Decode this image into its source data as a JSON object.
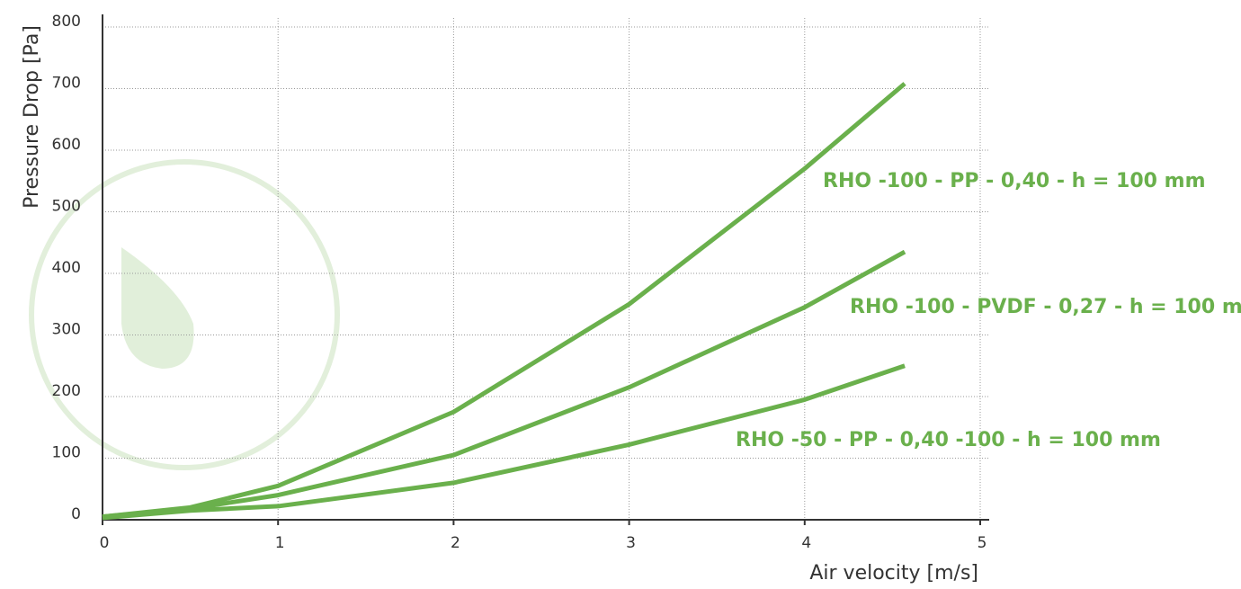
{
  "chart_data": {
    "type": "line",
    "y_label": "Pressure Drop [Pa]",
    "x_label": "Air velocity [m/s]",
    "x": [
      0,
      0.5,
      1,
      2,
      3,
      4,
      4.57
    ],
    "series": [
      {
        "name": "RHO -100 - PP - 0,40 - h = 100 mm",
        "color": "#6ab04c",
        "values": [
          5,
          20,
          55,
          175,
          350,
          570,
          708
        ]
      },
      {
        "name": "RHO -100 - PVDF - 0,27 - h = 100 mm",
        "color": "#6ab04c",
        "values": [
          5,
          18,
          40,
          105,
          215,
          345,
          435
        ]
      },
      {
        "name": "RHO -50 - PP - 0,40 -100 - h = 100 mm",
        "color": "#6ab04c",
        "values": [
          3,
          15,
          22,
          60,
          122,
          195,
          250
        ]
      }
    ],
    "xlim": [
      0,
      5
    ],
    "xticks": [
      0,
      1,
      2,
      3,
      4,
      5
    ],
    "ylim": [
      0,
      800
    ],
    "yticks": [
      0,
      100,
      200,
      300,
      400,
      500,
      600,
      700,
      800
    ],
    "grid": true
  }
}
